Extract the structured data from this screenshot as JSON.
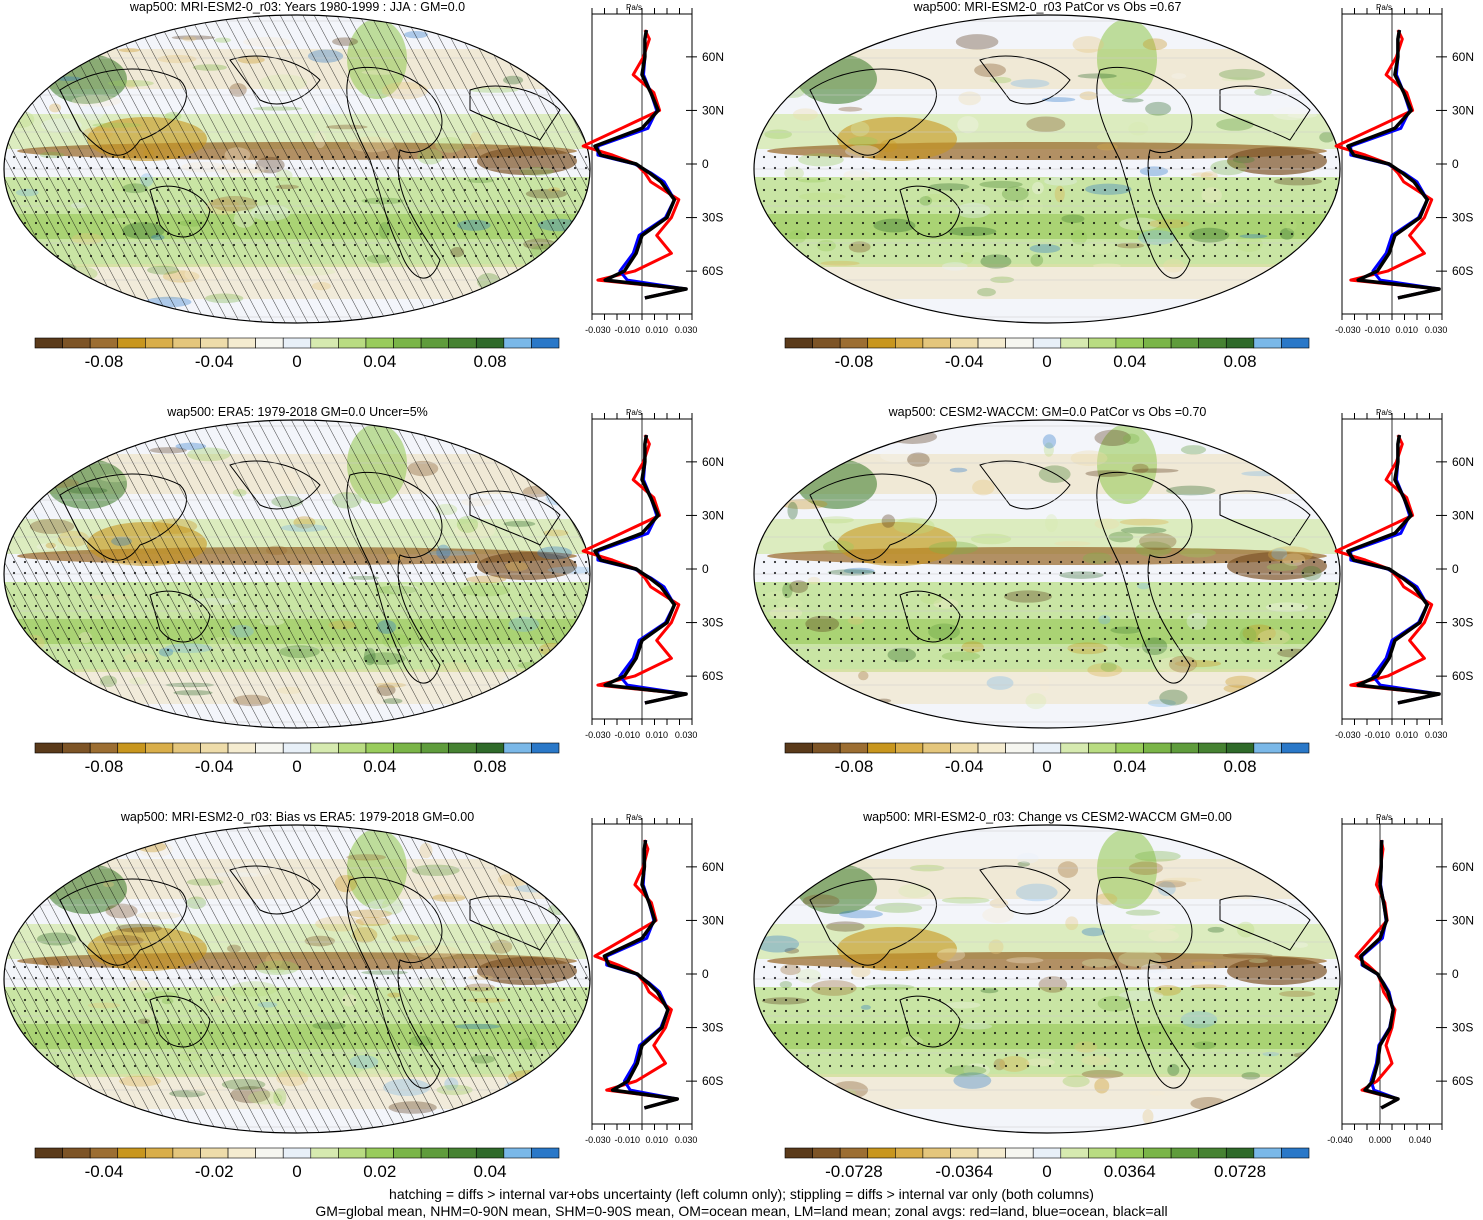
{
  "footer": {
    "line1": "hatching = diffs > internal var+obs uncertainty (left column only); stippling = diffs > internal var only (both columns)",
    "line2": "GM=global mean, NHM=0-90N mean, SHM=0-90S mean, OM=ocean mean, LM=land mean; zonal avgs: red=land, blue=ocean, black=all"
  },
  "colors": {
    "palette": [
      "#5a3a1a",
      "#7d5426",
      "#9c6e32",
      "#c8961e",
      "#d9ae4a",
      "#e4c67c",
      "#eedcaa",
      "#f5ecd0",
      "#f6f6f0",
      "#e8f0f8",
      "#d6eab0",
      "#b9dc82",
      "#99cc5c",
      "#7ab548",
      "#5f9c3c",
      "#468232",
      "#2f6a2a",
      "#7ab8e8",
      "#2a78c8"
    ],
    "land": "#ff0000",
    "ocean": "#0000ff",
    "all": "#000000"
  },
  "zonal_axis": {
    "unit": "Pa/s",
    "lat_ticks": [
      "60N",
      "30N",
      "0",
      "30S",
      "60S"
    ],
    "x_ticks_default": [
      "-0.030",
      "-0.010",
      "0.010",
      "0.030"
    ],
    "x_ticks_change": [
      "-0.040",
      "0.000",
      "0.040"
    ]
  },
  "panels": [
    {
      "id": "mri-clim",
      "title": "wap500: MRI-ESM2-0_r03: Years 1980-1999 : JJA : GM=0.0",
      "hatch": true,
      "cbar_labels": [
        "-0.08",
        "-0.04",
        "0",
        "0.04",
        "0.08"
      ]
    },
    {
      "id": "mri-patcor",
      "title": "wap500: MRI-ESM2-0_r03 PatCor vs Obs =0.67",
      "hatch": false,
      "cbar_labels": [
        "-0.08",
        "-0.04",
        "0",
        "0.04",
        "0.08"
      ]
    },
    {
      "id": "era5",
      "title": "wap500: ERA5: 1979-2018 GM=0.0 Uncer=5%",
      "hatch": true,
      "cbar_labels": [
        "-0.08",
        "-0.04",
        "0",
        "0.04",
        "0.08"
      ]
    },
    {
      "id": "cesm2",
      "title": "wap500: CESM2-WACCM: GM=0.0 PatCor vs Obs =0.70",
      "hatch": false,
      "cbar_labels": [
        "-0.08",
        "-0.04",
        "0",
        "0.04",
        "0.08"
      ]
    },
    {
      "id": "bias",
      "title": "wap500: MRI-ESM2-0_r03: Bias vs ERA5: 1979-2018 GM=0.00",
      "hatch": true,
      "cbar_labels": [
        "-0.04",
        "-0.02",
        "0",
        "0.02",
        "0.04"
      ]
    },
    {
      "id": "change",
      "title": "wap500: MRI-ESM2-0_r03: Change vs CESM2-WACCM GM=0.00",
      "hatch": false,
      "cbar_labels": [
        "-0.0728",
        "-0.0364",
        "0",
        "0.0364",
        "0.0728"
      ]
    }
  ],
  "chart_data": {
    "type": "heatmap",
    "variable": "wap500",
    "zonal_profiles": {
      "lat": [
        75,
        70,
        60,
        50,
        40,
        30,
        20,
        10,
        5,
        0,
        -5,
        -10,
        -20,
        -30,
        -40,
        -50,
        -60,
        -65,
        -70,
        -75
      ],
      "clim": {
        "land": [
          0.002,
          0.005,
          0.001,
          -0.006,
          0.008,
          0.012,
          -0.014,
          -0.04,
          -0.02,
          -0.004,
          0.002,
          0.006,
          0.025,
          0.02,
          0.01,
          0.02,
          -0.005,
          -0.03,
          0.03,
          0.002
        ],
        "ocean": [
          0.003,
          0.002,
          0.002,
          0.001,
          0.006,
          0.01,
          0.004,
          -0.03,
          -0.03,
          -0.005,
          0.006,
          0.015,
          0.022,
          0.016,
          -0.002,
          -0.006,
          -0.015,
          -0.01,
          0.03,
          0.002
        ],
        "all": [
          0.003,
          0.002,
          0.002,
          0.0,
          0.006,
          0.011,
          0.0,
          -0.032,
          -0.028,
          -0.004,
          0.005,
          0.013,
          0.022,
          0.017,
          0.0,
          -0.004,
          -0.012,
          -0.025,
          0.03,
          0.002
        ]
      }
    }
  }
}
